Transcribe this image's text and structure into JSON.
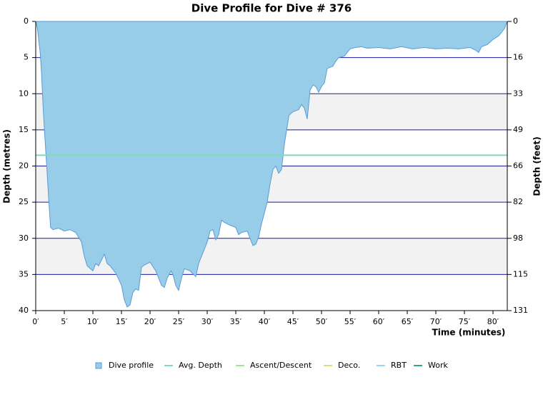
{
  "chart_data": {
    "type": "area",
    "title": "Dive Profile for Dive # 376",
    "x_label": "Time (minutes)",
    "y_label": "Depth (metres)",
    "y2_label": "Depth (feet)",
    "inverted_y": true,
    "grid": true,
    "xlim": [
      0,
      82.5
    ],
    "xticks": [
      {
        "value": 0,
        "label": "0′"
      },
      {
        "value": 5,
        "label": "5′"
      },
      {
        "value": 10,
        "label": "10′"
      },
      {
        "value": 15,
        "label": "15′"
      },
      {
        "value": 20,
        "label": "20′"
      },
      {
        "value": 25,
        "label": "25′"
      },
      {
        "value": 30,
        "label": "30′"
      },
      {
        "value": 35,
        "label": "35′"
      },
      {
        "value": 40,
        "label": "40′"
      },
      {
        "value": 45,
        "label": "45′"
      },
      {
        "value": 50,
        "label": "50′"
      },
      {
        "value": 55,
        "label": "55′"
      },
      {
        "value": 60,
        "label": "60′"
      },
      {
        "value": 65,
        "label": "65′"
      },
      {
        "value": 70,
        "label": "70′"
      },
      {
        "value": 75,
        "label": "75′"
      },
      {
        "value": 80,
        "label": "80′"
      }
    ],
    "ylim": [
      0,
      40
    ],
    "yticks": [
      0,
      5,
      10,
      15,
      20,
      25,
      30,
      35,
      40
    ],
    "y2lim": [
      0,
      131.2
    ],
    "y2ticks": [
      0,
      {
        "value": 16.4,
        "label": "16"
      },
      {
        "value": 32.8,
        "label": "33"
      },
      {
        "value": 49.2,
        "label": "49"
      },
      {
        "value": 65.6,
        "label": "66"
      },
      {
        "value": 82,
        "label": "82"
      },
      {
        "value": 98.4,
        "label": "98"
      },
      {
        "value": 114.8,
        "label": "115"
      },
      {
        "value": 131.2,
        "label": "131"
      }
    ],
    "series": [
      {
        "name": "Dive profile",
        "color": "#98cde9",
        "x": [
          0,
          0.3,
          0.8,
          1,
          1.3,
          1.6,
          2,
          2.3,
          2.6,
          3,
          4,
          5,
          6,
          7,
          8,
          8.5,
          9,
          10,
          10.5,
          11,
          12,
          12.5,
          13,
          14,
          15,
          15.5,
          16,
          16.5,
          17,
          17.5,
          18,
          18.5,
          19,
          20,
          21,
          22,
          22.5,
          23,
          23.7,
          24,
          24.5,
          25,
          25.5,
          26,
          27,
          28,
          28.5,
          29,
          30,
          30.5,
          31,
          31.5,
          32,
          32.5,
          33,
          34,
          35,
          35.5,
          36,
          37,
          37.5,
          38,
          38.5,
          39,
          39.5,
          40,
          40.5,
          41,
          41.5,
          42,
          42.5,
          43,
          43.5,
          44,
          44.3,
          45,
          46,
          46.5,
          47,
          47.5,
          48,
          48.5,
          49,
          49.5,
          50,
          50.5,
          51,
          52,
          52.5,
          53,
          54,
          55,
          56,
          57,
          58,
          60,
          62,
          64,
          66,
          68,
          70,
          72,
          74,
          76,
          77,
          77.5,
          78,
          79,
          80,
          81,
          82,
          82.5
        ],
        "values": [
          0,
          1,
          4.5,
          7,
          12,
          16,
          21,
          25,
          28.5,
          28.8,
          28.6,
          29,
          28.8,
          29.2,
          30.5,
          32.5,
          33.8,
          34.5,
          33.5,
          33.8,
          32.2,
          33.5,
          33.8,
          34.8,
          36.5,
          38.5,
          39.5,
          39.2,
          37.5,
          37,
          37.2,
          34,
          33.7,
          33.3,
          34.5,
          36.5,
          36.8,
          35.5,
          34.5,
          35,
          36.5,
          37.2,
          35.5,
          34.2,
          34.5,
          35.3,
          33.5,
          32.5,
          30.5,
          29,
          28.8,
          30.2,
          29.5,
          27.5,
          27.8,
          28.2,
          28.5,
          29.5,
          29.2,
          29,
          30,
          31,
          30.8,
          29.8,
          28,
          26.5,
          25,
          22.5,
          20.5,
          20,
          21,
          20.5,
          17,
          14.5,
          13,
          12.5,
          12.2,
          11.5,
          12,
          13.5,
          9.5,
          8.8,
          9,
          9.8,
          9,
          8.5,
          6.5,
          6.2,
          5.5,
          5,
          4.8,
          3.8,
          3.6,
          3.5,
          3.7,
          3.6,
          3.8,
          3.5,
          3.8,
          3.6,
          3.8,
          3.7,
          3.8,
          3.6,
          4,
          4.3,
          3.5,
          3.2,
          2.5,
          2,
          1,
          0
        ]
      },
      {
        "name": "Avg. Depth",
        "color": "#7fdcb0",
        "value": 18.5
      },
      {
        "name": "Ascent/Descent",
        "color": "#a3e88f"
      },
      {
        "name": "Deco.",
        "color": "#d6e27a"
      },
      {
        "name": "RBT",
        "color": "#9ad6f2"
      },
      {
        "name": "Work",
        "color": "#2fa98a"
      }
    ]
  }
}
